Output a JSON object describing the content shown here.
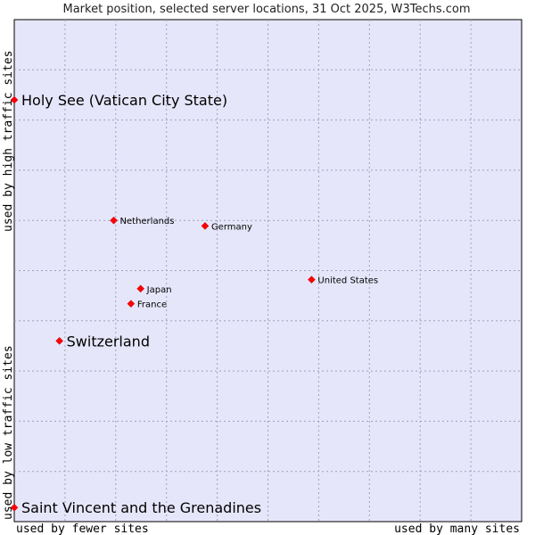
{
  "chart_data": {
    "type": "scatter",
    "title": "Market position, selected server locations, 31 Oct 2025, W3Techs.com",
    "xlabel_left": "used by fewer sites",
    "xlabel_right": "used by many sites",
    "ylabel_bottom": "used by low traffic sites",
    "ylabel_top": "used by high traffic sites",
    "xlim": [
      0,
      10
    ],
    "ylim": [
      0,
      10
    ],
    "grid": true,
    "marker_color": "#ff0000",
    "plot_background": "#e6e6fa",
    "points": [
      {
        "label": "Holy See (Vatican City State)",
        "x": 0.0,
        "y": 8.4,
        "emphasis": true
      },
      {
        "label": "Netherlands",
        "x": 1.96,
        "y": 6.0,
        "emphasis": false
      },
      {
        "label": "Germany",
        "x": 3.76,
        "y": 5.89,
        "emphasis": false
      },
      {
        "label": "United States",
        "x": 5.86,
        "y": 4.82,
        "emphasis": false
      },
      {
        "label": "Japan",
        "x": 2.49,
        "y": 4.64,
        "emphasis": false
      },
      {
        "label": "France",
        "x": 2.3,
        "y": 4.34,
        "emphasis": false
      },
      {
        "label": "Switzerland",
        "x": 0.89,
        "y": 3.6,
        "emphasis": true
      },
      {
        "label": "Saint Vincent and the Grenadines",
        "x": 0.0,
        "y": 0.28,
        "emphasis": true
      }
    ]
  }
}
